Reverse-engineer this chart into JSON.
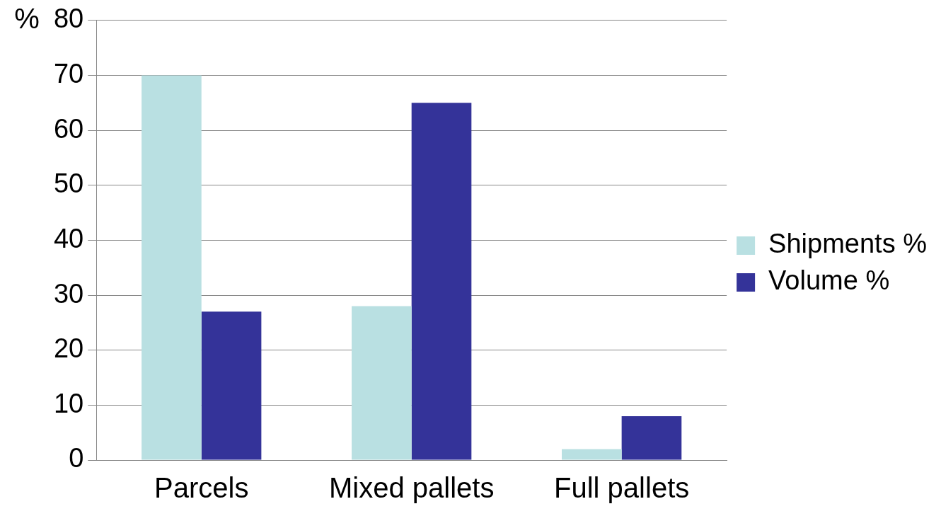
{
  "chart_data": {
    "type": "bar",
    "ylabel": "%",
    "categories": [
      "Parcels",
      "Mixed pallets",
      "Full pallets"
    ],
    "series": [
      {
        "name": "Shipments %",
        "color": "#b9e0e2",
        "values": [
          70,
          28,
          2
        ]
      },
      {
        "name": "Volume %",
        "color": "#343399",
        "values": [
          27,
          65,
          8
        ]
      }
    ],
    "ylim": [
      0,
      80
    ],
    "yticks": [
      0,
      10,
      20,
      30,
      40,
      50,
      60,
      70,
      80
    ],
    "grid": "y",
    "legend": "right"
  }
}
